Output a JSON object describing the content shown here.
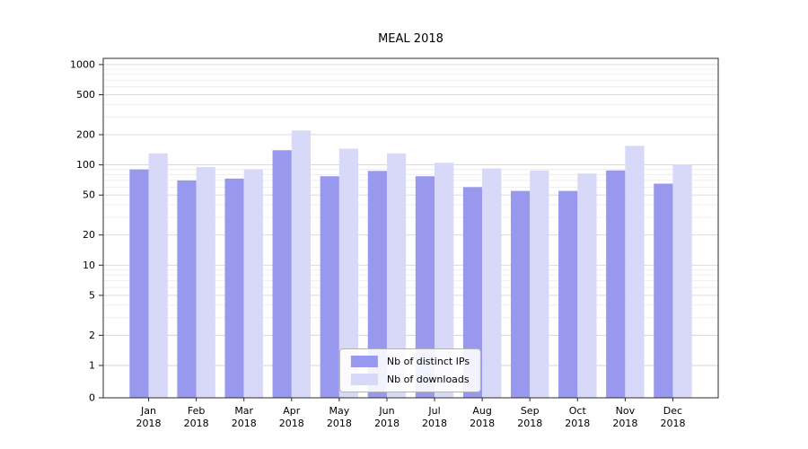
{
  "chart_data": {
    "type": "bar",
    "title": "MEAL 2018",
    "yscale": "symlog",
    "grid": true,
    "xlabel": "",
    "ylabel": "",
    "categories": [
      "Jan",
      "Feb",
      "Mar",
      "Apr",
      "May",
      "Jun",
      "Jul",
      "Aug",
      "Sep",
      "Oct",
      "Nov",
      "Dec"
    ],
    "year_label": "2018",
    "y_ticks": [
      1000,
      500,
      200,
      100,
      50,
      20,
      10,
      5,
      2,
      1,
      0
    ],
    "ylim": [
      0,
      1300
    ],
    "legend_position": "lower center",
    "series": [
      {
        "name": "Nb of distinct IPs",
        "color": "#9898ee",
        "values": [
          90,
          70,
          73,
          140,
          77,
          87,
          77,
          60,
          55,
          55,
          88,
          65
        ]
      },
      {
        "name": "Nb of downloads",
        "color": "#d8d8f8",
        "values": [
          130,
          95,
          90,
          220,
          145,
          130,
          105,
          92,
          88,
          82,
          155,
          100
        ]
      }
    ]
  },
  "colors": {
    "background": "#ffffff",
    "grid_major": "#d6d6d6",
    "grid_minor": "#ebebeb",
    "axis": "#2b2b2b",
    "text": "#000000"
  }
}
